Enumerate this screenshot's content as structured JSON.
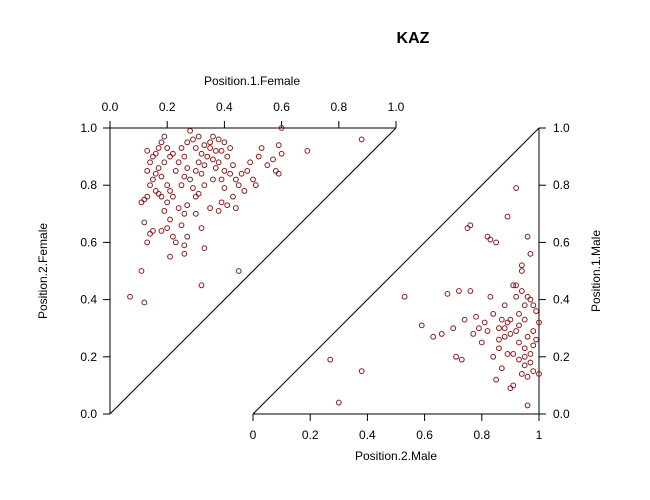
{
  "chart_data": {
    "type": "scatter",
    "title": "KAZ",
    "point_color": "#8B1A1A",
    "female": {
      "xlabel": "Position.1.Female",
      "ylabel": "Position.2.Female",
      "xlim": [
        0,
        1
      ],
      "ylim": [
        0,
        1
      ],
      "x_ticks": [
        "0.0",
        "0.2",
        "0.4",
        "0.6",
        "0.8",
        "1.0"
      ],
      "y_ticks": [
        "0.0",
        "0.2",
        "0.4",
        "0.6",
        "0.8",
        "1.0"
      ],
      "points": [
        [
          0.07,
          0.41
        ],
        [
          0.12,
          0.39
        ],
        [
          0.11,
          0.5
        ],
        [
          0.13,
          0.6
        ],
        [
          0.14,
          0.63
        ],
        [
          0.15,
          0.64
        ],
        [
          0.12,
          0.67
        ],
        [
          0.11,
          0.74
        ],
        [
          0.12,
          0.75
        ],
        [
          0.13,
          0.76
        ],
        [
          0.14,
          0.8
        ],
        [
          0.16,
          0.78
        ],
        [
          0.17,
          0.77
        ],
        [
          0.18,
          0.76
        ],
        [
          0.15,
          0.82
        ],
        [
          0.16,
          0.84
        ],
        [
          0.13,
          0.85
        ],
        [
          0.14,
          0.88
        ],
        [
          0.15,
          0.9
        ],
        [
          0.13,
          0.92
        ],
        [
          0.16,
          0.91
        ],
        [
          0.17,
          0.93
        ],
        [
          0.18,
          0.95
        ],
        [
          0.19,
          0.97
        ],
        [
          0.2,
          0.93
        ],
        [
          0.21,
          0.9
        ],
        [
          0.19,
          0.88
        ],
        [
          0.17,
          0.86
        ],
        [
          0.18,
          0.83
        ],
        [
          0.2,
          0.8
        ],
        [
          0.21,
          0.78
        ],
        [
          0.22,
          0.76
        ],
        [
          0.2,
          0.74
        ],
        [
          0.19,
          0.71
        ],
        [
          0.21,
          0.68
        ],
        [
          0.2,
          0.65
        ],
        [
          0.18,
          0.64
        ],
        [
          0.22,
          0.62
        ],
        [
          0.23,
          0.6
        ],
        [
          0.21,
          0.55
        ],
        [
          0.24,
          0.72
        ],
        [
          0.25,
          0.8
        ],
        [
          0.26,
          0.83
        ],
        [
          0.23,
          0.85
        ],
        [
          0.24,
          0.88
        ],
        [
          0.22,
          0.91
        ],
        [
          0.25,
          0.93
        ],
        [
          0.27,
          0.95
        ],
        [
          0.28,
          0.99
        ],
        [
          0.26,
          0.9
        ],
        [
          0.27,
          0.86
        ],
        [
          0.28,
          0.82
        ],
        [
          0.29,
          0.79
        ],
        [
          0.3,
          0.76
        ],
        [
          0.27,
          0.73
        ],
        [
          0.26,
          0.7
        ],
        [
          0.25,
          0.66
        ],
        [
          0.27,
          0.62
        ],
        [
          0.26,
          0.59
        ],
        [
          0.26,
          0.56
        ],
        [
          0.3,
          0.85
        ],
        [
          0.31,
          0.88
        ],
        [
          0.32,
          0.91
        ],
        [
          0.3,
          0.93
        ],
        [
          0.29,
          0.96
        ],
        [
          0.31,
          0.97
        ],
        [
          0.33,
          0.94
        ],
        [
          0.34,
          0.9
        ],
        [
          0.33,
          0.87
        ],
        [
          0.32,
          0.84
        ],
        [
          0.33,
          0.8
        ],
        [
          0.31,
          0.77
        ],
        [
          0.3,
          0.7
        ],
        [
          0.32,
          0.65
        ],
        [
          0.33,
          0.58
        ],
        [
          0.35,
          0.72
        ],
        [
          0.36,
          0.82
        ],
        [
          0.37,
          0.86
        ],
        [
          0.36,
          0.89
        ],
        [
          0.35,
          0.93
        ],
        [
          0.38,
          0.96
        ],
        [
          0.39,
          0.92
        ],
        [
          0.38,
          0.88
        ],
        [
          0.4,
          0.85
        ],
        [
          0.39,
          0.82
        ],
        [
          0.4,
          0.79
        ],
        [
          0.39,
          0.74
        ],
        [
          0.38,
          0.71
        ],
        [
          0.41,
          0.73
        ],
        [
          0.4,
          0.95
        ],
        [
          0.41,
          0.9
        ],
        [
          0.42,
          0.93
        ],
        [
          0.43,
          0.87
        ],
        [
          0.42,
          0.84
        ],
        [
          0.44,
          0.82
        ],
        [
          0.45,
          0.8
        ],
        [
          0.43,
          0.76
        ],
        [
          0.44,
          0.72
        ],
        [
          0.46,
          0.84
        ],
        [
          0.47,
          0.78
        ],
        [
          0.48,
          0.85
        ],
        [
          0.49,
          0.88
        ],
        [
          0.5,
          0.82
        ],
        [
          0.51,
          0.8
        ],
        [
          0.52,
          0.9
        ],
        [
          0.53,
          0.93
        ],
        [
          0.55,
          0.87
        ],
        [
          0.57,
          0.89
        ],
        [
          0.58,
          0.85
        ],
        [
          0.59,
          0.94
        ],
        [
          0.6,
          0.91
        ],
        [
          0.59,
          0.84
        ],
        [
          0.6,
          1.0
        ],
        [
          0.69,
          0.92
        ],
        [
          0.32,
          0.45
        ],
        [
          0.45,
          0.5
        ],
        [
          0.88,
          0.96
        ],
        [
          0.36,
          0.97
        ],
        [
          0.35,
          0.95
        ],
        [
          0.37,
          0.92
        ]
      ]
    },
    "male": {
      "xlabel": "Position.2.Male",
      "ylabel": "Position.1.Male",
      "xlim": [
        0,
        1
      ],
      "ylim": [
        0,
        1
      ],
      "x_ticks": [
        "0",
        "0.2",
        "0.4",
        "0.6",
        "0.8",
        "1"
      ],
      "y_ticks": [
        "0.0",
        "0.2",
        "0.4",
        "0.6",
        "0.8",
        "1.0"
      ],
      "points": [
        [
          0.27,
          0.19
        ],
        [
          0.3,
          0.04
        ],
        [
          0.38,
          0.15
        ],
        [
          0.53,
          0.41
        ],
        [
          0.59,
          0.31
        ],
        [
          0.63,
          0.27
        ],
        [
          0.66,
          0.28
        ],
        [
          0.68,
          0.42
        ],
        [
          0.7,
          0.3
        ],
        [
          0.71,
          0.2
        ],
        [
          0.72,
          0.43
        ],
        [
          0.73,
          0.19
        ],
        [
          0.74,
          0.33
        ],
        [
          0.75,
          0.65
        ],
        [
          0.76,
          0.66
        ],
        [
          0.76,
          0.43
        ],
        [
          0.77,
          0.28
        ],
        [
          0.78,
          0.34
        ],
        [
          0.79,
          0.3
        ],
        [
          0.8,
          0.25
        ],
        [
          0.81,
          0.32
        ],
        [
          0.82,
          0.29
        ],
        [
          0.82,
          0.62
        ],
        [
          0.83,
          0.61
        ],
        [
          0.83,
          0.41
        ],
        [
          0.84,
          0.35
        ],
        [
          0.84,
          0.2
        ],
        [
          0.85,
          0.12
        ],
        [
          0.85,
          0.6
        ],
        [
          0.86,
          0.3
        ],
        [
          0.86,
          0.23
        ],
        [
          0.87,
          0.33
        ],
        [
          0.87,
          0.16
        ],
        [
          0.88,
          0.27
        ],
        [
          0.88,
          0.38
        ],
        [
          0.89,
          0.69
        ],
        [
          0.89,
          0.21
        ],
        [
          0.9,
          0.28
        ],
        [
          0.9,
          0.33
        ],
        [
          0.91,
          0.45
        ],
        [
          0.91,
          0.21
        ],
        [
          0.91,
          0.1
        ],
        [
          0.92,
          0.79
        ],
        [
          0.92,
          0.41
        ],
        [
          0.92,
          0.29
        ],
        [
          0.93,
          0.35
        ],
        [
          0.93,
          0.25
        ],
        [
          0.93,
          0.19
        ],
        [
          0.94,
          0.52
        ],
        [
          0.94,
          0.5
        ],
        [
          0.94,
          0.43
        ],
        [
          0.95,
          0.38
        ],
        [
          0.95,
          0.33
        ],
        [
          0.95,
          0.23
        ],
        [
          0.95,
          0.17
        ],
        [
          0.96,
          0.62
        ],
        [
          0.96,
          0.41
        ],
        [
          0.96,
          0.27
        ],
        [
          0.96,
          0.13
        ],
        [
          0.96,
          0.03
        ],
        [
          0.97,
          0.56
        ],
        [
          0.97,
          0.4
        ],
        [
          0.97,
          0.21
        ],
        [
          0.97,
          0.18
        ],
        [
          0.98,
          0.38
        ],
        [
          0.98,
          0.29
        ],
        [
          0.98,
          0.24
        ],
        [
          0.98,
          0.15
        ],
        [
          0.99,
          0.36
        ],
        [
          0.99,
          0.26
        ],
        [
          1.0,
          0.32
        ],
        [
          1.0,
          0.14
        ],
        [
          0.9,
          0.09
        ],
        [
          0.93,
          0.31
        ],
        [
          0.95,
          0.2
        ],
        [
          0.89,
          0.32
        ],
        [
          0.86,
          0.26
        ],
        [
          0.94,
          0.14
        ],
        [
          0.92,
          0.45
        ],
        [
          0.88,
          0.3
        ]
      ]
    }
  }
}
